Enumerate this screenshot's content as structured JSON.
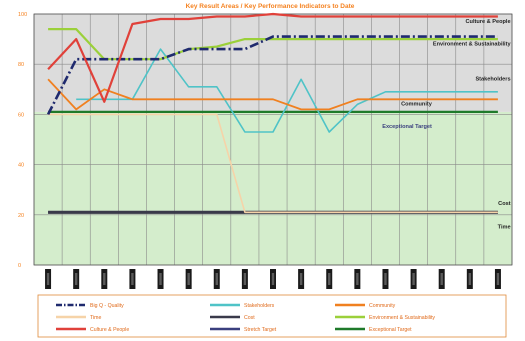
{
  "chart_data": {
    "type": "line",
    "title": "Key Result Areas / Key Performance Indicators to Date",
    "title_color": "#f58220",
    "ylim": [
      0,
      100
    ],
    "y_ticks": [
      0,
      20,
      40,
      60,
      80,
      100
    ],
    "grid": true,
    "legend_position": "bottom",
    "x_count": 17,
    "background_colors": {
      "above_target": "#dcdcdc",
      "below_target": "#d4edcc"
    },
    "tick_label_color": "#f58220",
    "series": [
      {
        "name": "Big Q - Quality",
        "color": "#1f2a6e",
        "style": "dash-dot",
        "values": [
          60,
          82,
          82,
          82,
          82,
          86,
          86,
          86,
          91,
          91,
          91,
          91,
          91,
          91,
          91,
          91,
          91
        ]
      },
      {
        "name": "Stakeholders",
        "color": "#4fc3c7",
        "style": "solid",
        "values": [
          null,
          66,
          66,
          66,
          86,
          71,
          71,
          53,
          53,
          74,
          53,
          64,
          69,
          69,
          69,
          69,
          69
        ]
      },
      {
        "name": "Community",
        "color": "#f08020",
        "style": "solid",
        "values": [
          74,
          62,
          70,
          66,
          66,
          66,
          66,
          66,
          66,
          62,
          62,
          66,
          66,
          66,
          66,
          66,
          66
        ]
      },
      {
        "name": "Time",
        "color": "#f6d3a8",
        "style": "solid",
        "values": [
          60,
          60,
          60,
          60,
          60,
          60,
          60,
          21,
          21,
          21,
          21,
          21,
          21,
          21,
          21,
          21,
          21
        ]
      },
      {
        "name": "Cost",
        "color": "#3a3a4a",
        "style": "solid",
        "values": [
          21,
          21,
          21,
          21,
          21,
          21,
          21,
          21,
          21,
          21,
          21,
          21,
          21,
          21,
          21,
          21,
          21
        ]
      },
      {
        "name": "Environment & Sustainability",
        "color": "#9bd03a",
        "style": "solid",
        "values": [
          94,
          94,
          82,
          82,
          82,
          86,
          87,
          90,
          90,
          90,
          90,
          90,
          90,
          90,
          90,
          90,
          90
        ]
      },
      {
        "name": "Culture & People",
        "color": "#e0413a",
        "style": "solid",
        "values": [
          78,
          90,
          65,
          96,
          98,
          98,
          99,
          99,
          100,
          99,
          99,
          99,
          99,
          99,
          99,
          99,
          99
        ]
      },
      {
        "name": "Stretch Target",
        "color": "#3a3f7e",
        "style": "solid",
        "values": [
          21,
          21,
          21,
          21,
          21,
          21,
          21,
          21,
          21,
          21,
          21,
          21,
          21,
          21,
          21,
          21,
          21
        ]
      },
      {
        "name": "Exceptional Target",
        "color": "#1f7a2a",
        "style": "solid",
        "values": [
          61,
          61,
          61,
          61,
          61,
          61,
          61,
          61,
          61,
          61,
          61,
          61,
          61,
          61,
          61,
          61,
          61
        ]
      }
    ],
    "annotations": [
      {
        "text": "Culture & People",
        "color": "#222222",
        "x": 16,
        "y": 96.5
      },
      {
        "text": "Environment & Sustainability",
        "color": "#222222",
        "x": 16,
        "y": 87.5
      },
      {
        "text": "Stakeholders",
        "color": "#222222",
        "x": 16,
        "y": 73.5
      },
      {
        "text": "Community",
        "color": "#222222",
        "x": 13.2,
        "y": 63.5
      },
      {
        "text": "Exceptional Target",
        "color": "#3a3f7e",
        "x": 13.2,
        "y": 54.5
      },
      {
        "text": "Cost",
        "color": "#222222",
        "x": 16,
        "y": 24
      },
      {
        "text": "Time",
        "color": "#222222",
        "x": 16,
        "y": 14.5
      }
    ],
    "legend": [
      {
        "name": "Big Q - Quality",
        "color": "#1f2a6e",
        "style": "dash-dot"
      },
      {
        "name": "Stakeholders",
        "color": "#4fc3c7",
        "style": "solid"
      },
      {
        "name": "Community",
        "color": "#f08020",
        "style": "solid"
      },
      {
        "name": "Time",
        "color": "#f6d3a8",
        "style": "solid"
      },
      {
        "name": "Cost",
        "color": "#3a3a4a",
        "style": "solid"
      },
      {
        "name": "Environment & Sustainability",
        "color": "#9bd03a",
        "style": "solid"
      },
      {
        "name": "Culture & People",
        "color": "#e0413a",
        "style": "solid"
      },
      {
        "name": "Stretch Target",
        "color": "#3a3f7e",
        "style": "solid"
      },
      {
        "name": "Exceptional Target",
        "color": "#1f7a2a",
        "style": "solid"
      }
    ]
  }
}
